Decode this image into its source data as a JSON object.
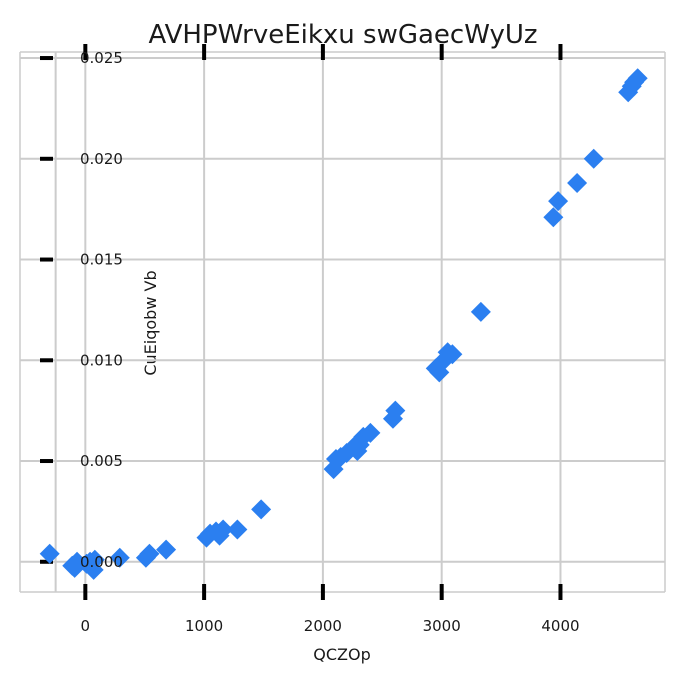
{
  "chart_data": {
    "type": "scatter",
    "title": "AVHPWrveEikxu swGaecWyUz",
    "xlabel": "QCZOp",
    "ylabel": "CuEiqobw Vb",
    "xlim": [
      -550,
      4880
    ],
    "ylim": [
      -0.0015,
      0.0253
    ],
    "xticks": [
      0,
      1000,
      2000,
      3000,
      4000
    ],
    "xtick_labels": [
      "0",
      "1000",
      "2000",
      "3000",
      "4000"
    ],
    "yticks": [
      0.0,
      0.005,
      0.01,
      0.015,
      0.02,
      0.025
    ],
    "ytick_labels": [
      "0.000",
      "0.005",
      "0.010",
      "0.015",
      "0.020",
      "0.025"
    ],
    "grid": true,
    "marker": "diamond",
    "color": "#2b7ff0",
    "series": [
      {
        "x": [
          -300,
          -110,
          -90,
          -70,
          10,
          40,
          70,
          80,
          290,
          510,
          540,
          680,
          1020,
          1050,
          1100,
          1130,
          1160,
          1280,
          1480,
          2090,
          2110,
          2150,
          2200,
          2260,
          2290,
          2310,
          2340,
          2400,
          2590,
          2610,
          2950,
          2980,
          3020,
          3050,
          3090,
          3330,
          3940,
          3980,
          4140,
          4280,
          4570,
          4600,
          4620,
          4650
        ],
        "y": [
          0.0004,
          -0.0002,
          -0.0003,
          0.0,
          -0.0001,
          0.0,
          -0.0004,
          0.0001,
          0.0002,
          0.0002,
          0.0004,
          0.0006,
          0.0012,
          0.0014,
          0.0015,
          0.0013,
          0.0016,
          0.0016,
          0.0026,
          0.0046,
          0.0051,
          0.0052,
          0.0054,
          0.0057,
          0.0055,
          0.0058,
          0.0062,
          0.0064,
          0.0071,
          0.0075,
          0.0096,
          0.0094,
          0.01,
          0.0104,
          0.0103,
          0.0124,
          0.0171,
          0.0179,
          0.0188,
          0.02,
          0.0233,
          0.0236,
          0.0238,
          0.024
        ]
      }
    ]
  }
}
